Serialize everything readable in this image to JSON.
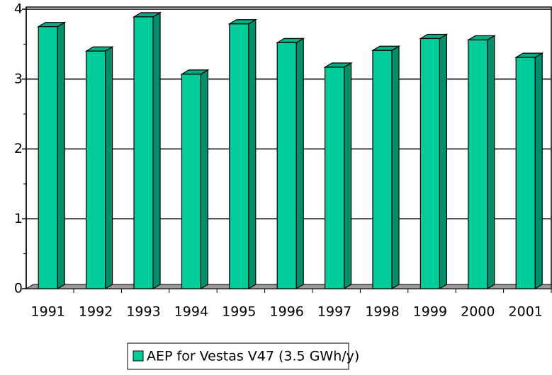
{
  "chart_data": {
    "type": "bar",
    "categories": [
      "1991",
      "1992",
      "1993",
      "1994",
      "1995",
      "1996",
      "1997",
      "1998",
      "1999",
      "2000",
      "2001"
    ],
    "series": [
      {
        "name": "AEP for Vestas V47 (3.5 GWh/y)",
        "color": "#00cc99",
        "values": [
          3.75,
          3.4,
          3.89,
          3.07,
          3.79,
          3.52,
          3.17,
          3.41,
          3.58,
          3.56,
          3.31
        ]
      }
    ],
    "ylim": [
      0,
      4
    ],
    "yticks": [
      0,
      1,
      2,
      3,
      4
    ],
    "grid": true
  }
}
